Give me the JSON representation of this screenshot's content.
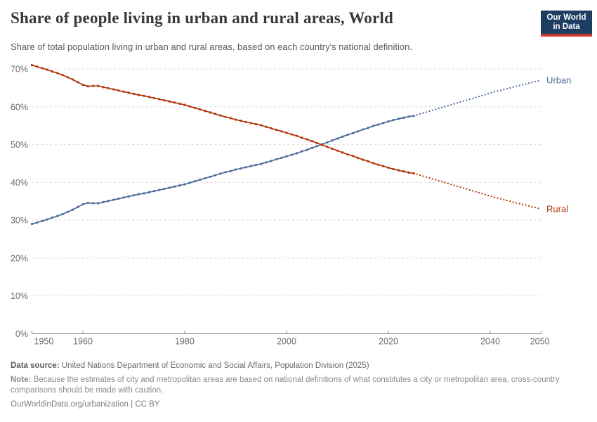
{
  "header": {
    "title": "Share of people living in urban and rural areas, World",
    "subtitle": "Share of total population living in urban and rural areas, based on each country's national definition.",
    "logo": {
      "line1": "Our World",
      "line2": "in Data",
      "bg": "#1d3d63",
      "accent": "#cd3731"
    }
  },
  "footer": {
    "source_label": "Data source:",
    "source_text": "United Nations Department of Economic and Social Affairs, Population Division (2025)",
    "note_label": "Note:",
    "note_text": "Because the estimates of city and metropolitan areas are based on national definitions of what constitutes a city or metropolitan area, cross-country comparisons should be made with caution.",
    "link_text": "OurWorldinData.org/urbanization",
    "separator": "|",
    "license_text": "CC BY"
  },
  "chart_data": {
    "type": "line",
    "title": "Share of people living in urban and rural areas, World",
    "xlabel": "",
    "ylabel": "",
    "xlim": [
      1950,
      2050
    ],
    "ylim": [
      0,
      70
    ],
    "x": {
      "start": 1950,
      "end": 2050,
      "step": 1
    },
    "x_ticks": [
      1950,
      1960,
      1980,
      2000,
      2020,
      2040,
      2050
    ],
    "y_ticks": [
      0,
      10,
      20,
      30,
      40,
      50,
      60,
      70
    ],
    "y_tick_suffix": "%",
    "grid": true,
    "legend_position": "line-end-labels",
    "projection_from_year": 2025,
    "series": [
      {
        "name": "Urban",
        "color": "#4C6A9C",
        "values": [
          29.0,
          29.4,
          29.8,
          30.2,
          30.7,
          31.1,
          31.6,
          32.2,
          32.8,
          33.5,
          34.2,
          34.6,
          34.5,
          34.5,
          34.8,
          35.1,
          35.4,
          35.7,
          36.0,
          36.3,
          36.6,
          36.9,
          37.1,
          37.4,
          37.7,
          38.0,
          38.3,
          38.6,
          38.9,
          39.2,
          39.5,
          39.9,
          40.3,
          40.7,
          41.1,
          41.5,
          41.9,
          42.3,
          42.7,
          43.0,
          43.4,
          43.7,
          44.0,
          44.3,
          44.6,
          44.9,
          45.3,
          45.7,
          46.1,
          46.5,
          46.9,
          47.3,
          47.7,
          48.2,
          48.6,
          49.1,
          49.6,
          50.1,
          50.6,
          51.1,
          51.6,
          52.1,
          52.6,
          53.0,
          53.5,
          54.0,
          54.4,
          54.9,
          55.3,
          55.7,
          56.1,
          56.5,
          56.8,
          57.1,
          57.4,
          57.6,
          58.0,
          58.4,
          58.8,
          59.2,
          59.6,
          60.0,
          60.4,
          60.8,
          61.2,
          61.6,
          62.0,
          62.4,
          62.8,
          63.2,
          63.6,
          64.0,
          64.3,
          64.7,
          65.0,
          65.4,
          65.7,
          66.0,
          66.4,
          66.7,
          67.0
        ]
      },
      {
        "name": "Rural",
        "color": "#B13507",
        "values": [
          71.0,
          70.6,
          70.2,
          69.8,
          69.3,
          68.9,
          68.4,
          67.8,
          67.2,
          66.5,
          65.8,
          65.4,
          65.5,
          65.5,
          65.2,
          64.9,
          64.6,
          64.3,
          64.0,
          63.7,
          63.4,
          63.1,
          62.9,
          62.6,
          62.3,
          62.0,
          61.7,
          61.4,
          61.1,
          60.8,
          60.5,
          60.1,
          59.7,
          59.3,
          58.9,
          58.5,
          58.1,
          57.7,
          57.3,
          57.0,
          56.6,
          56.3,
          56.0,
          55.7,
          55.4,
          55.1,
          54.7,
          54.3,
          53.9,
          53.5,
          53.1,
          52.7,
          52.3,
          51.8,
          51.4,
          50.9,
          50.4,
          49.9,
          49.4,
          48.9,
          48.4,
          47.9,
          47.4,
          47.0,
          46.5,
          46.0,
          45.6,
          45.1,
          44.7,
          44.3,
          43.9,
          43.5,
          43.2,
          42.9,
          42.6,
          42.4,
          42.0,
          41.6,
          41.2,
          40.8,
          40.4,
          40.0,
          39.6,
          39.2,
          38.8,
          38.4,
          38.0,
          37.6,
          37.2,
          36.8,
          36.4,
          36.0,
          35.7,
          35.3,
          35.0,
          34.6,
          34.3,
          34.0,
          33.6,
          33.3,
          33.0
        ]
      }
    ]
  }
}
